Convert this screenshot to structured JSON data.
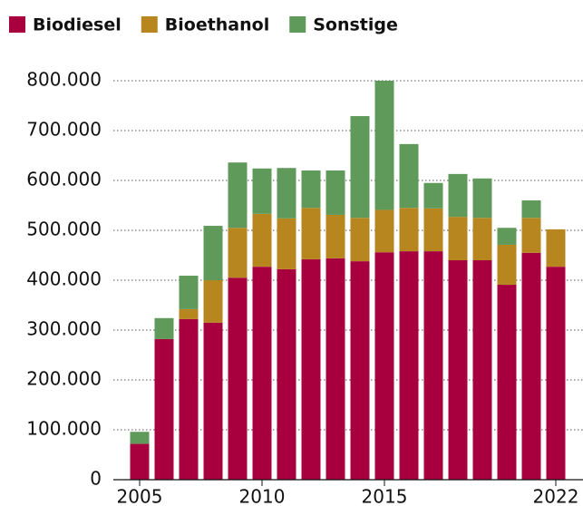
{
  "chart_data": {
    "type": "stacked_bar",
    "categories": [
      "2005",
      null,
      null,
      null,
      null,
      "2010",
      null,
      null,
      null,
      null,
      "2015",
      null,
      null,
      null,
      null,
      null,
      null,
      "2022"
    ],
    "series": [
      {
        "name": "Biodiesel",
        "color": "#a8003f",
        "values": [
          72000,
          282000,
          322000,
          315000,
          405000,
          427000,
          422000,
          442000,
          444000,
          438000,
          456000,
          458000,
          458000,
          440000,
          440000,
          391000,
          455000,
          427000
        ]
      },
      {
        "name": "Bioethanol",
        "color": "#b8861e",
        "values": [
          0,
          0,
          20000,
          85000,
          100000,
          106000,
          102000,
          103000,
          87000,
          87000,
          85000,
          87000,
          86000,
          87000,
          85000,
          80000,
          70000,
          75000
        ]
      },
      {
        "name": "Sonstige",
        "color": "#5f9a5a",
        "values": [
          24000,
          42000,
          67000,
          109000,
          131000,
          91000,
          101000,
          75000,
          89000,
          204000,
          259000,
          128000,
          51000,
          86000,
          79000,
          34000,
          35000,
          0
        ]
      }
    ],
    "ylim": [
      0,
      800000
    ],
    "yticks": [
      0,
      {
        "value": 100000,
        "label": "100.000"
      },
      {
        "value": 200000,
        "label": "200.000"
      },
      {
        "value": 300000,
        "label": "300.000"
      },
      {
        "value": 400000,
        "label": "400.000"
      },
      {
        "value": 500000,
        "label": "500.000"
      },
      {
        "value": 600000,
        "label": "600.000"
      },
      {
        "value": 700000,
        "label": "700.000"
      },
      {
        "value": 800000,
        "label": "800.000"
      }
    ],
    "grid": true,
    "legend": "top"
  }
}
